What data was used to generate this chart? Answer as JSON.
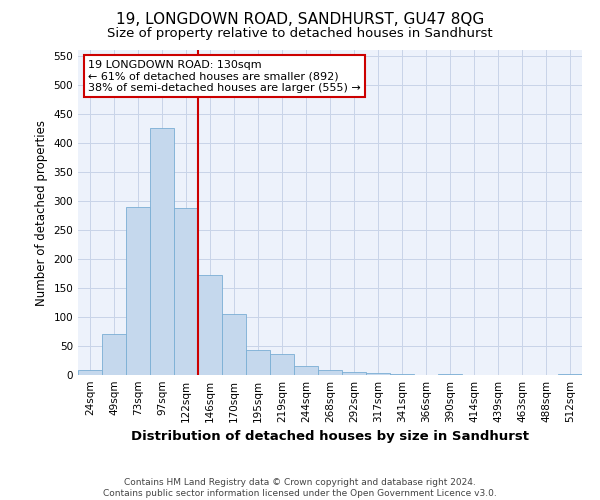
{
  "title": "19, LONGDOWN ROAD, SANDHURST, GU47 8QG",
  "subtitle": "Size of property relative to detached houses in Sandhurst",
  "xlabel": "Distribution of detached houses by size in Sandhurst",
  "ylabel": "Number of detached properties",
  "categories": [
    "24sqm",
    "49sqm",
    "73sqm",
    "97sqm",
    "122sqm",
    "146sqm",
    "170sqm",
    "195sqm",
    "219sqm",
    "244sqm",
    "268sqm",
    "292sqm",
    "317sqm",
    "341sqm",
    "366sqm",
    "390sqm",
    "414sqm",
    "439sqm",
    "463sqm",
    "488sqm",
    "512sqm"
  ],
  "values": [
    8,
    70,
    290,
    425,
    288,
    173,
    105,
    43,
    37,
    15,
    8,
    5,
    3,
    1,
    0,
    2,
    0,
    0,
    0,
    0,
    2
  ],
  "bar_color": "#c5d8ed",
  "bar_edge_color": "#7aaed4",
  "grid_color": "#c8d4e8",
  "vline_x_index": 4,
  "vline_color": "#cc0000",
  "annotation_line1": "19 LONGDOWN ROAD: 130sqm",
  "annotation_line2": "← 61% of detached houses are smaller (892)",
  "annotation_line3": "38% of semi-detached houses are larger (555) →",
  "annotation_box_color": "#ffffff",
  "annotation_box_edgecolor": "#cc0000",
  "ylim": [
    0,
    560
  ],
  "yticks": [
    0,
    50,
    100,
    150,
    200,
    250,
    300,
    350,
    400,
    450,
    500,
    550
  ],
  "footer_line1": "Contains HM Land Registry data © Crown copyright and database right 2024.",
  "footer_line2": "Contains public sector information licensed under the Open Government Licence v3.0.",
  "background_color": "#edf2fb",
  "title_fontsize": 11,
  "subtitle_fontsize": 9.5,
  "ylabel_fontsize": 8.5,
  "xlabel_fontsize": 9.5,
  "tick_fontsize": 7.5,
  "annotation_fontsize": 8,
  "footer_fontsize": 6.5
}
